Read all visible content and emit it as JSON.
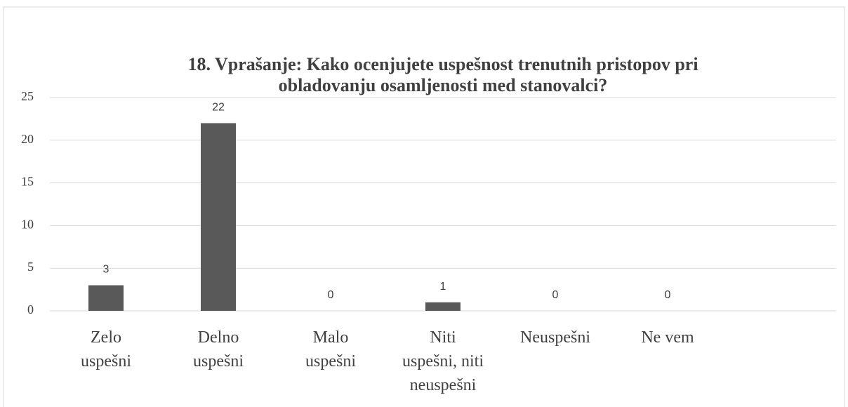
{
  "chart_data": {
    "type": "bar",
    "title": "18. Vprašanje: Kako ocenjujete uspešnost trenutnih pristopov pri\nobladovanju osamljenosti med stanovalci?",
    "categories": [
      "Zelo\nuspešni",
      "Delno\nuspešni",
      "Malo\nuspešni",
      "Niti\nuspešni, niti\nneuspešni",
      "Neuspešni",
      "Ne vem",
      null
    ],
    "values": [
      3,
      22,
      0,
      1,
      0,
      0,
      null
    ],
    "color": "#595959",
    "ylim": [
      0,
      25
    ],
    "yticks": [
      0,
      5,
      10,
      15,
      20,
      25
    ],
    "grid": true
  }
}
